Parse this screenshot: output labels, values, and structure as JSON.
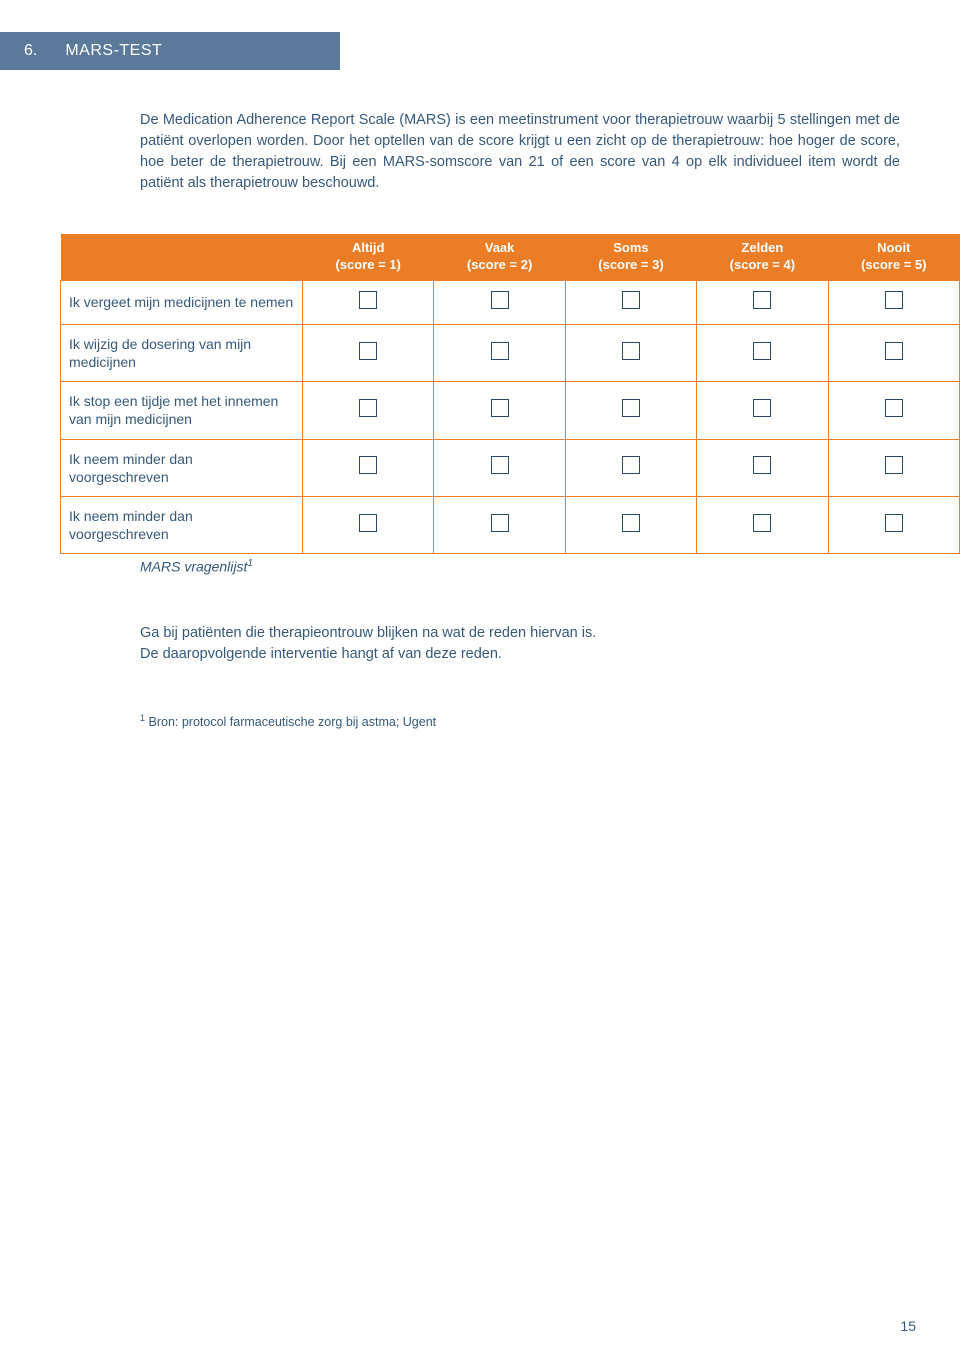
{
  "section": {
    "number": "6.",
    "title": "MARS-TEST"
  },
  "intro": "De Medication Adherence Report Scale (MARS) is een meetinstrument voor therapietrouw waarbij 5 stellingen met de patiënt overlopen worden. Door het optellen van de score krijgt u een zicht op de therapietrouw: hoe hoger de score, hoe beter de therapietrouw. Bij een MARS-somscore van 21 of een score van 4 op elk individueel item wordt de patiënt als therapietrouw beschouwd.",
  "table": {
    "columns": [
      {
        "label": "Altijd",
        "sub": "(score = 1)"
      },
      {
        "label": "Vaak",
        "sub": "(score = 2)"
      },
      {
        "label": "Soms",
        "sub": "(score = 3)"
      },
      {
        "label": "Zelden",
        "sub": "(score = 4)"
      },
      {
        "label": "Nooit",
        "sub": "(score = 5)"
      }
    ],
    "rows": [
      "Ik vergeet mijn medicijnen te nemen",
      "Ik wijzig de dosering van mijn medicijnen",
      "Ik stop een tijdje met het innemen van mijn medicijnen",
      "Ik neem minder dan voorgeschreven",
      "Ik neem minder dan voorgeschreven"
    ]
  },
  "caption": "MARS vragenlijst",
  "outro1": "Ga bij patiënten die therapieontrouw blijken na wat de reden hiervan is.",
  "outro2": "De daaropvolgende interventie hangt af van deze reden.",
  "footnote": "Bron: protocol farmaceutische zorg bij astma; Ugent",
  "pageNumber": "15",
  "style": {
    "section_bg": "#5b7a99",
    "section_fg": "#ffffff",
    "header_bg": "#ec7d27",
    "header_fg": "#ffffff",
    "border_color": "#ec7d27",
    "text_color": "#36597a",
    "checkbox_border": "#2a4a66",
    "page_bg": "#ffffff",
    "body_fontsize": 14.5,
    "table_fontsize": 14,
    "header_fontsize": 13,
    "caption_fontsize": 14,
    "footnote_fontsize": 12.5
  }
}
